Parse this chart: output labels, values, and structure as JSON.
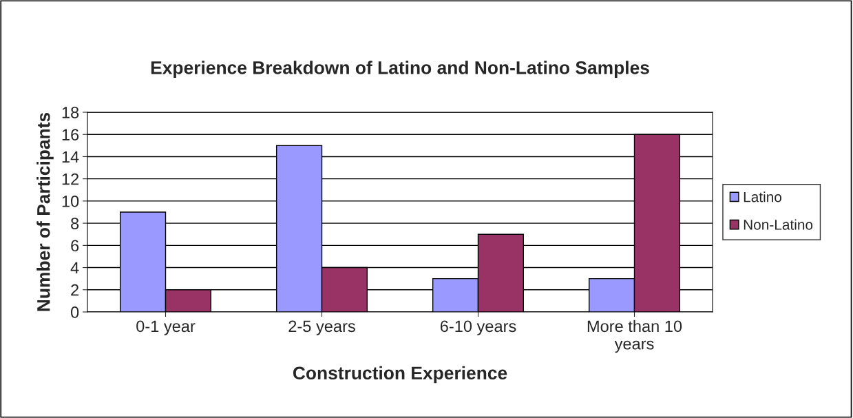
{
  "chart_data": {
    "type": "bar",
    "title": "Experience Breakdown of Latino and Non-Latino Samples",
    "xlabel": "Construction Experience",
    "ylabel": "Number of Participants",
    "categories": [
      "0-1 year",
      "2-5 years",
      "6-10 years",
      "More than 10\nyears"
    ],
    "series": [
      {
        "name": "Latino",
        "color": "#9999ff",
        "values": [
          9,
          15,
          3,
          3
        ]
      },
      {
        "name": "Non-Latino",
        "color": "#993366",
        "values": [
          2,
          4,
          7,
          16
        ]
      }
    ],
    "ylim": [
      0,
      18
    ],
    "yticks": [
      0,
      2,
      4,
      6,
      8,
      10,
      12,
      14,
      16,
      18
    ],
    "grid": "y",
    "legend": "right"
  }
}
